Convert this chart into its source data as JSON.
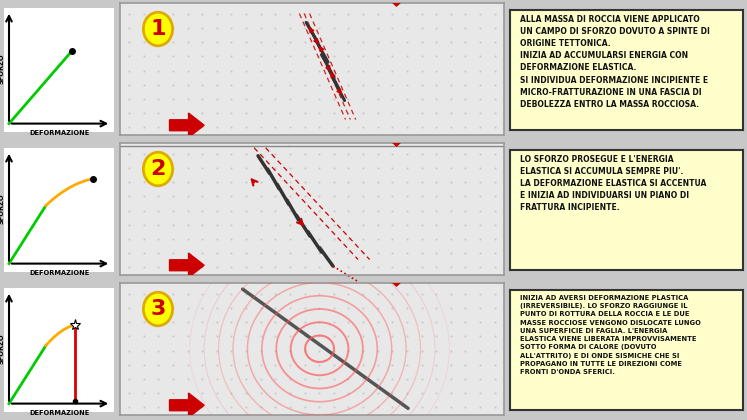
{
  "fig_bg": "#c8c8c8",
  "rock_bg": "#e8e8e8",
  "rock_border": "#999999",
  "text_box_bg": "#ffffcc",
  "text_box_border": "#333333",
  "arrow_color": "#cc0000",
  "num_circle_bg": "#ffff00",
  "num_circle_border": "#ddaa00",
  "num_color": "#cc0000",
  "graph_line_elastic": "#00cc00",
  "graph_line_orange": "#ffaa00",
  "graph_line_red": "#dd0000",
  "seismic_color": "#ff4444",
  "crack_color": "#444444",
  "panels": [
    {
      "step": 1,
      "curve": "elastic_low",
      "text": "ALLA MASSA DI ROCCIA VIENE APPLICATO\nUN CAMPO DI SFORZO DOVUTO A SPINTE DI\nORIGINE TETTONICA.\nINIZIA AD ACCUMULARSI ENERGIA CON\nDEFORMAZIONE ELASTICA.\nSI INDIVIDUA DEFORMAZIONE INCIPIENTE E\nMICRO-FRATTURAZIONE IN UNA FASCIA DI\nDEBOLEZZA ENTRO LA MASSA ROCCIOSA."
    },
    {
      "step": 2,
      "curve": "elastic_high",
      "text": "LO SFORZO PROSEGUE E L'ENERGIA\nELASTICA SI ACCUMULA SEMPRE PIU'.\nLA DEFORMAZIONE ELASTICA SI ACCENTUA\nE INIZIA AD INDIVIDUARSI UN PIANO DI\nFRATTURA INCIPIENTE."
    },
    {
      "step": 3,
      "curve": "plastic",
      "text": "INIZIA AD AVERSI DEFORMAZIONE PLASTICA\n(IRREVERSIBILE). LO SFORZO RAGGIUNGE IL\nPUNTO DI ROTTURA DELLA ROCCIA E LE DUE\nMASSE ROCCIOSE VENGONO DISLOCATE LUNGO\nUNA SUPERFICIE DI FAGLIA. L'ENERGIA\nELASTICA VIENE LIBERATA IMPROVVISAMENTE\nSOTTO FORMA DI CALORE (DOVUTO\nALL'ATTRITO) E DI ONDE SISMICHE CHE SI\nPROPAGANO IN TUTTE LE DIREZIONI COME\nFRONTI D'ONDA SFERICI."
    }
  ]
}
